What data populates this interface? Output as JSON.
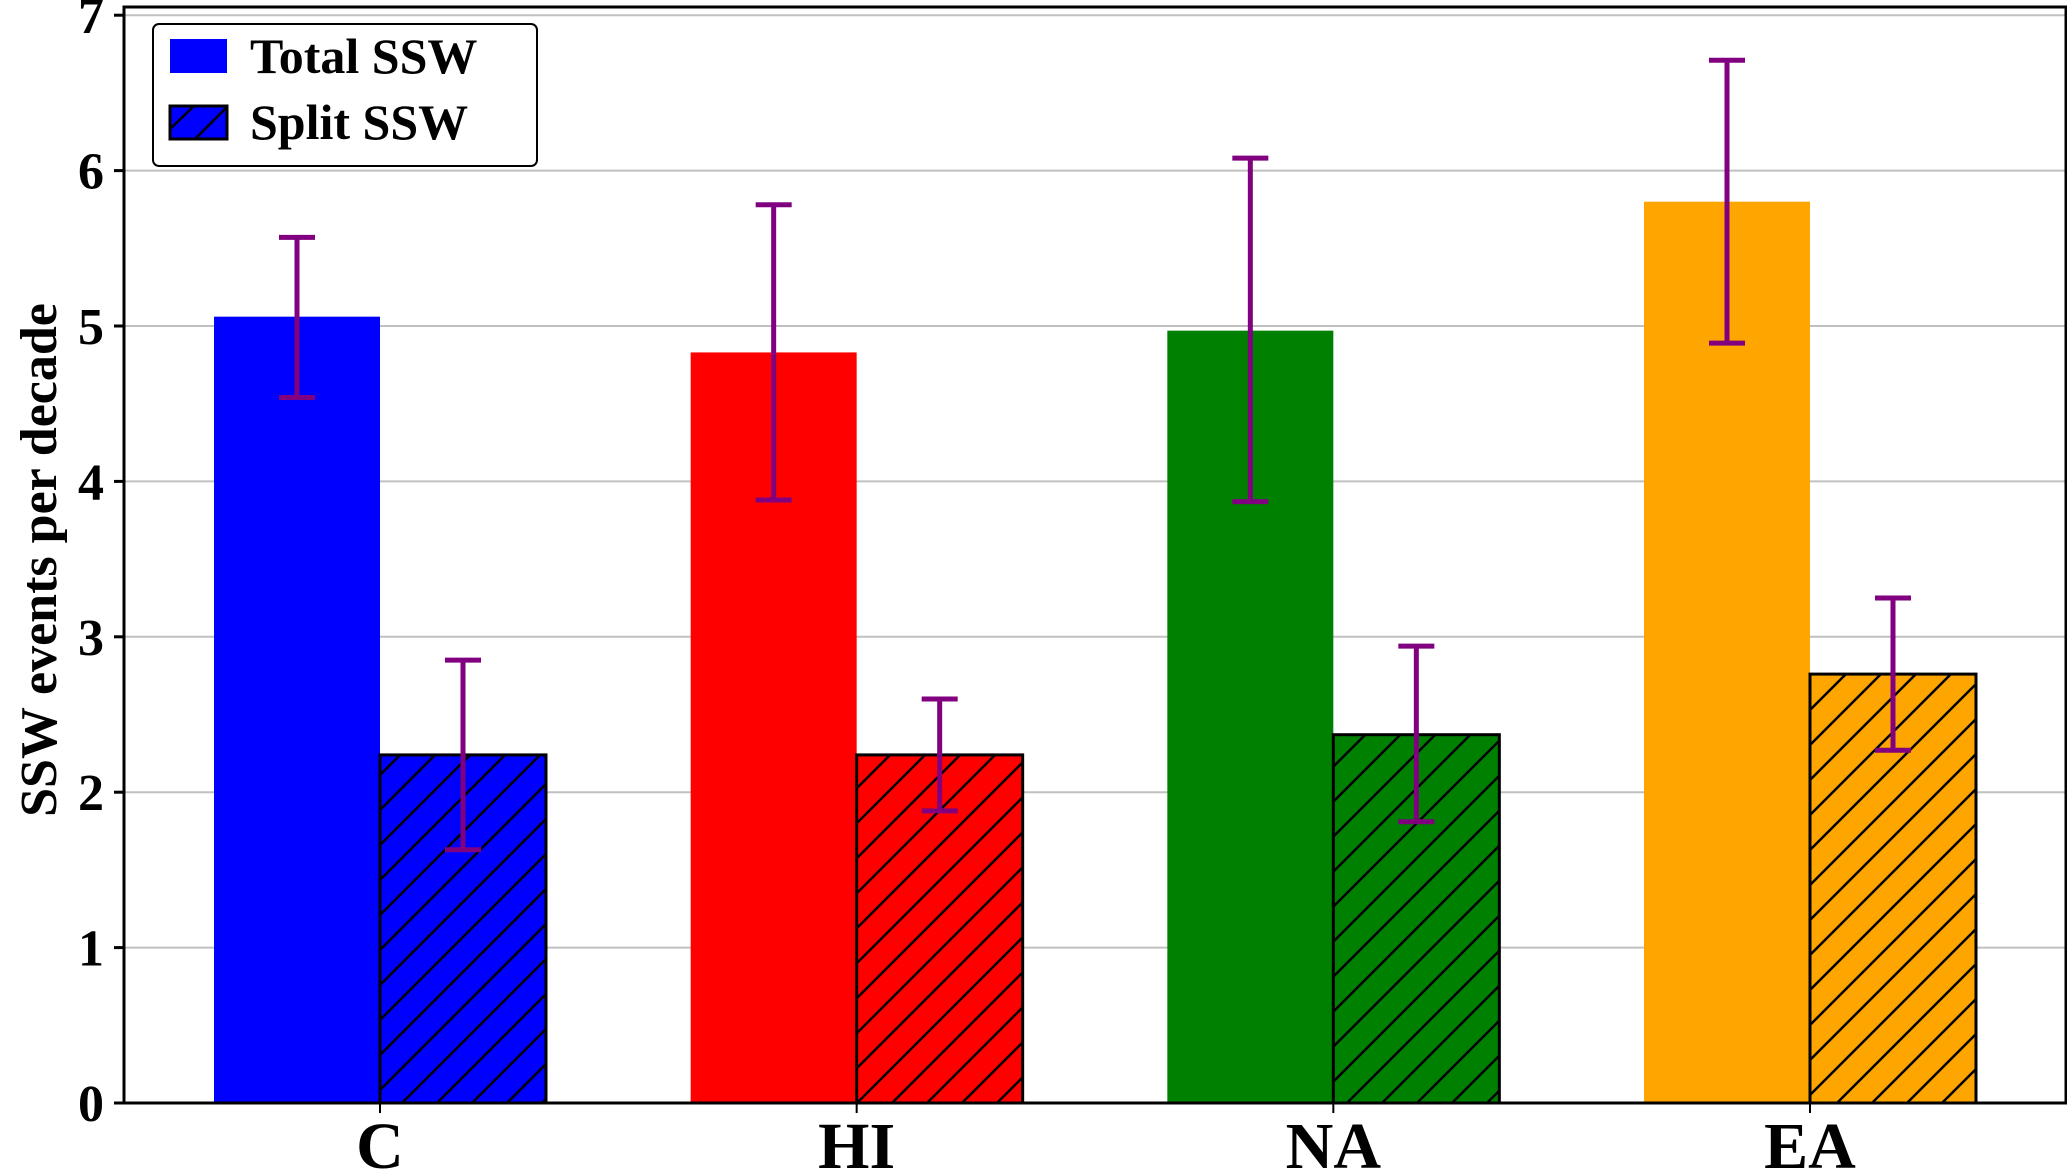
{
  "chart_data": {
    "type": "bar",
    "title": "",
    "xlabel": "",
    "ylabel": "SSW events per decade",
    "ylim": [
      0,
      7.05
    ],
    "yticks": [
      0,
      1,
      2,
      3,
      4,
      5,
      6,
      7
    ],
    "grid": "horizontal",
    "legend_position": "top-left",
    "categories": [
      "C",
      "HI",
      "NA",
      "EA"
    ],
    "category_colors": [
      "#0000ff",
      "#ff0000",
      "#008000",
      "#ffa500"
    ],
    "error_bar_color": "#800080",
    "series": [
      {
        "name": "Total SSW",
        "hatch": "none",
        "values": [
          5.06,
          4.83,
          4.97,
          5.8
        ],
        "error_low": [
          4.54,
          3.88,
          3.87,
          4.89
        ],
        "error_high": [
          5.57,
          5.78,
          6.08,
          6.71
        ]
      },
      {
        "name": "Split SSW",
        "hatch": "diagonal",
        "values": [
          2.24,
          2.24,
          2.37,
          2.76
        ],
        "error_low": [
          1.63,
          1.88,
          1.81,
          2.27
        ],
        "error_high": [
          2.85,
          2.6,
          2.94,
          3.25
        ]
      }
    ]
  }
}
